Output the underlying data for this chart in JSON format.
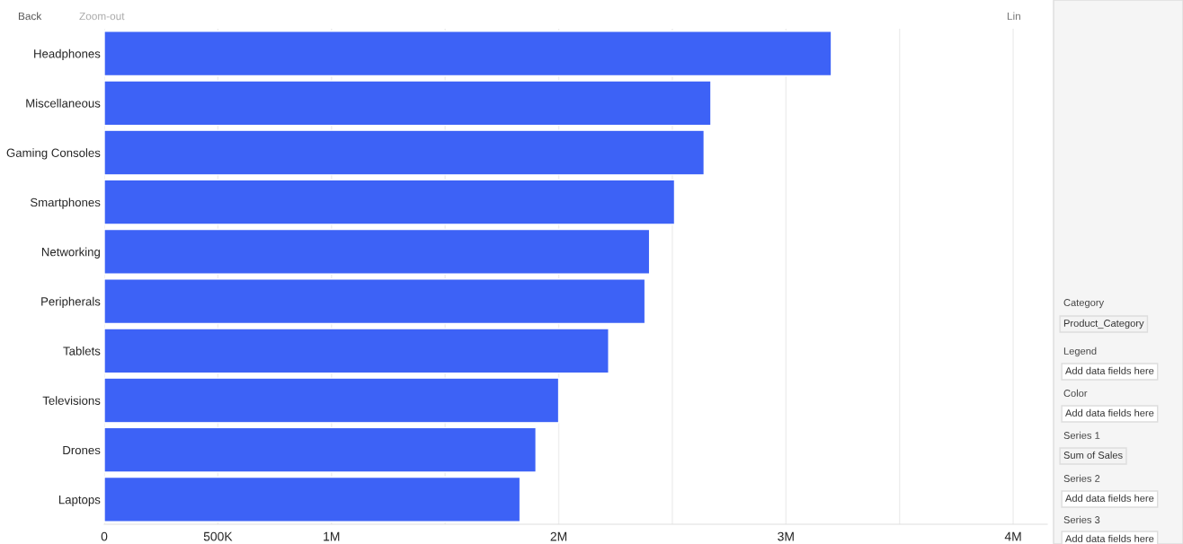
{
  "chart_data": {
    "type": "bar",
    "orientation": "horizontal",
    "categories": [
      "Headphones",
      "Miscellaneous",
      "Gaming Consoles",
      "Smartphones",
      "Networking",
      "Peripherals",
      "Tablets",
      "Televisions",
      "Drones",
      "Laptops"
    ],
    "values": [
      3200000,
      2670000,
      2640000,
      2510000,
      2400000,
      2380000,
      2220000,
      2000000,
      1900000,
      1830000
    ],
    "color": "#3d62f6",
    "xlim": [
      0,
      4150000
    ],
    "xticks": [
      0,
      {
        "value": 500000,
        "label": "500K"
      },
      {
        "value": 1000000,
        "label": "1M"
      },
      {
        "value": 1500000,
        "label": null
      },
      {
        "value": 2000000,
        "label": "2M"
      },
      {
        "value": 2500000,
        "label": null
      },
      {
        "value": 3000000,
        "label": "3M"
      },
      {
        "value": 3500000,
        "label": null
      },
      {
        "value": 4000000,
        "label": "4M"
      }
    ],
    "grid": "x",
    "annotations": [
      "Back",
      "Zoom-out",
      "Lin",
      "Category",
      "Product_Category",
      "Legend",
      "Add data fields here",
      "Color",
      "Add data fields here",
      "Series 1",
      "Sum of Sales",
      "Series 2",
      "Add data fields here",
      "Series 3",
      "Add data fields here"
    ]
  }
}
